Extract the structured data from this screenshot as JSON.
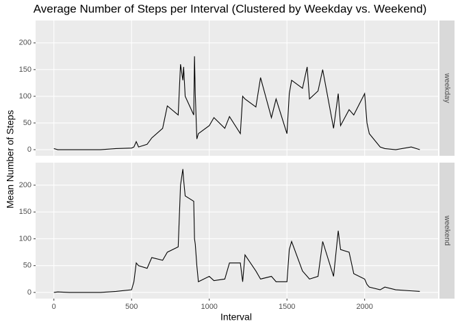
{
  "chart_data": {
    "type": "line",
    "title": "Average Number of Steps per Interval (Clustered by Weekday vs. Weekend)",
    "x_label": "Interval",
    "y_label": "Mean Number of Steps",
    "x": [
      0,
      25,
      100,
      200,
      300,
      400,
      500,
      515,
      530,
      545,
      600,
      630,
      700,
      730,
      800,
      815,
      830,
      835,
      845,
      900,
      905,
      910,
      920,
      930,
      1000,
      1030,
      1100,
      1130,
      1200,
      1215,
      1230,
      1300,
      1330,
      1400,
      1430,
      1500,
      1515,
      1530,
      1600,
      1630,
      1645,
      1700,
      1730,
      1800,
      1830,
      1845,
      1900,
      1930,
      2000,
      2015,
      2030,
      2100,
      2130,
      2200,
      2300,
      2355
    ],
    "series": [
      {
        "name": "weekday",
        "color": "#000000",
        "values": [
          2,
          0,
          0,
          0,
          0,
          2,
          3,
          5,
          15,
          5,
          10,
          22,
          40,
          82,
          65,
          160,
          130,
          155,
          100,
          65,
          175,
          105,
          20,
          30,
          45,
          60,
          40,
          62,
          30,
          100,
          95,
          80,
          135,
          60,
          95,
          30,
          105,
          130,
          115,
          155,
          95,
          110,
          150,
          40,
          105,
          45,
          75,
          65,
          105,
          50,
          30,
          5,
          2,
          0,
          5,
          0
        ]
      },
      {
        "name": "weekend",
        "color": "#000000",
        "values": [
          0,
          1,
          0,
          0,
          0,
          2,
          5,
          20,
          55,
          50,
          45,
          65,
          60,
          75,
          85,
          200,
          230,
          210,
          180,
          170,
          100,
          90,
          50,
          20,
          30,
          22,
          25,
          55,
          55,
          20,
          70,
          40,
          25,
          30,
          20,
          20,
          80,
          95,
          40,
          30,
          25,
          30,
          95,
          30,
          115,
          80,
          75,
          35,
          25,
          15,
          10,
          5,
          10,
          5,
          3,
          2
        ]
      }
    ],
    "xlim": [
      -117.75,
      2472.75
    ],
    "xticks": [
      0,
      500,
      1000,
      1500,
      2000
    ],
    "ylim": [
      -11.5,
      242
    ],
    "yticks": [
      0,
      50,
      100,
      150,
      200
    ],
    "grid": true
  }
}
